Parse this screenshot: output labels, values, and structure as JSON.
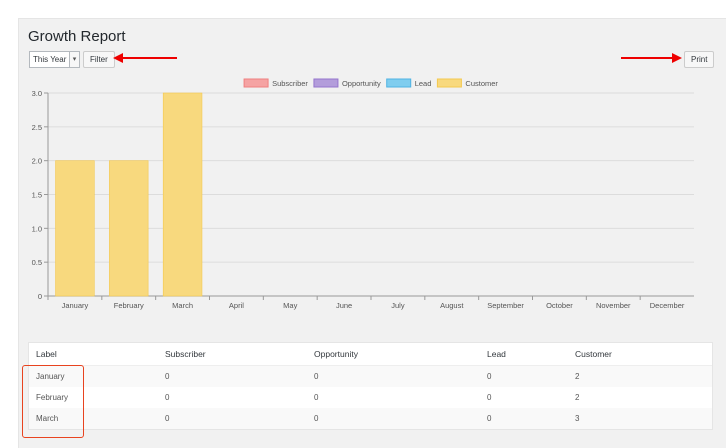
{
  "report": {
    "title": "Growth Report"
  },
  "filter": {
    "period_value": "This Year",
    "filter_label": "Filter"
  },
  "toolbar": {
    "print_label": "Print"
  },
  "chart_data": {
    "type": "bar",
    "title": "",
    "xlabel": "",
    "ylabel": "",
    "ylim": [
      0,
      3.0
    ],
    "yticks": [
      "0",
      "0.5",
      "1.0",
      "1.5",
      "2.0",
      "2.5",
      "3.0"
    ],
    "legend_position": "top-center",
    "categories": [
      "January",
      "February",
      "March",
      "April",
      "May",
      "June",
      "July",
      "August",
      "September",
      "October",
      "November",
      "December"
    ],
    "series": [
      {
        "name": "Subscriber",
        "color": "#f5a3a3",
        "border": "#f08080",
        "values": [
          0,
          0,
          0,
          0,
          0,
          0,
          0,
          0,
          0,
          0,
          0,
          0
        ]
      },
      {
        "name": "Opportunity",
        "color": "#b39ddb",
        "border": "#9575cd",
        "values": [
          0,
          0,
          0,
          0,
          0,
          0,
          0,
          0,
          0,
          0,
          0,
          0
        ]
      },
      {
        "name": "Lead",
        "color": "#7fcdef",
        "border": "#4fb3e3",
        "values": [
          0,
          0,
          0,
          0,
          0,
          0,
          0,
          0,
          0,
          0,
          0,
          0
        ]
      },
      {
        "name": "Customer",
        "color": "#f8d97e",
        "border": "#f4c950",
        "values": [
          2,
          2,
          3,
          0,
          0,
          0,
          0,
          0,
          0,
          0,
          0,
          0
        ]
      }
    ],
    "grid": true
  },
  "table": {
    "headers": [
      "Label",
      "Subscriber",
      "Opportunity",
      "Lead",
      "Customer"
    ],
    "rows": [
      [
        "January",
        "0",
        "0",
        "0",
        "2"
      ],
      [
        "February",
        "0",
        "0",
        "0",
        "2"
      ],
      [
        "March",
        "0",
        "0",
        "0",
        "3"
      ]
    ]
  },
  "colors": {
    "annotation_red": "#e00000",
    "highlight_border": "#e8431f"
  }
}
